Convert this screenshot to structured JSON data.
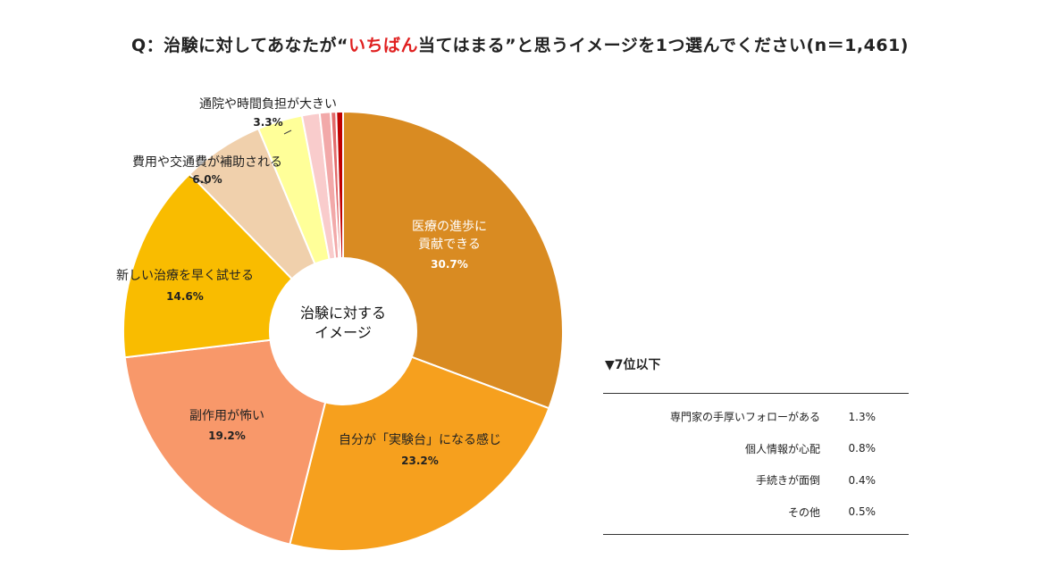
{
  "title": {
    "prefix": "Q：治験に対してあなたが“",
    "highlight": "いちばん",
    "suffix": "当てはまる”と思うイメージを1つ選んでください(n＝1,461)"
  },
  "center_label": [
    "治験に対する",
    "イメージ"
  ],
  "chart_data": {
    "type": "pie",
    "variant": "donut",
    "title": "Q：治験に対してあなたが“いちばん当てはまる”と思うイメージを1つ選んでください(n＝1,461)",
    "slices": [
      {
        "label": "医療の進歩に貢献できる",
        "display_lines": [
          "医療の進歩に",
          "貢献できる"
        ],
        "value": 30.7,
        "pct_text": "30.7%",
        "color": "#D98B22",
        "label_color": "#ffffff"
      },
      {
        "label": "自分が「実験台」になる感じ",
        "display_lines": [
          "自分が「実験台」になる感じ"
        ],
        "value": 23.2,
        "pct_text": "23.2%",
        "color": "#F6A01E",
        "label_color": "#222222"
      },
      {
        "label": "副作用が怖い",
        "display_lines": [
          "副作用が怖い"
        ],
        "value": 19.2,
        "pct_text": "19.2%",
        "color": "#F8986A",
        "label_color": "#222222"
      },
      {
        "label": "新しい治療を早く試せる",
        "display_lines": [
          "新しい治療を早く試せる"
        ],
        "value": 14.6,
        "pct_text": "14.6%",
        "color": "#F9BC00",
        "label_color": "#222222"
      },
      {
        "label": "費用や交通費が補助される",
        "display_lines": [
          "費用や交通費が補助される"
        ],
        "value": 6.0,
        "pct_text": "6.0%",
        "color": "#F0D0AC",
        "label_color": "#222222"
      },
      {
        "label": "通院や時間負担が大きい",
        "display_lines": [
          "通院や時間負担が大きい"
        ],
        "value": 3.3,
        "pct_text": "3.3%",
        "color": "#FFFF99",
        "label_color": "#222222"
      },
      {
        "label": "専門家の手厚いフォローがある",
        "value": 1.3,
        "color": "#F9CCCC"
      },
      {
        "label": "個人情報が心配",
        "value": 0.8,
        "color": "#F2A9A9"
      },
      {
        "label": "手続きが面倒",
        "value": 0.4,
        "color": "#E36A6A"
      },
      {
        "label": "その他",
        "value": 0.5,
        "color": "#C00000"
      }
    ]
  },
  "others": {
    "heading": "▼7位以下",
    "rows": [
      {
        "label": "専門家の手厚いフォローがある",
        "value": "1.3%"
      },
      {
        "label": "個人情報が心配",
        "value": "0.8%"
      },
      {
        "label": "手続きが面倒",
        "value": "0.4%"
      },
      {
        "label": "その他",
        "value": "0.5%"
      }
    ]
  }
}
